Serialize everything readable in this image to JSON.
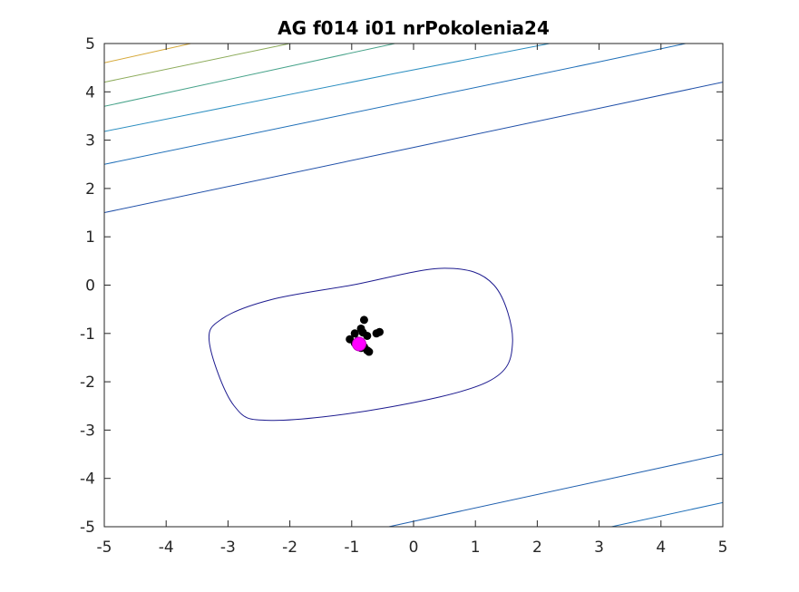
{
  "chart_data": {
    "type": "contour",
    "title": "AG f014 i01 nrPokolenia24",
    "xlabel": "",
    "ylabel": "",
    "xlim": [
      -5,
      5
    ],
    "ylim": [
      -5,
      5
    ],
    "x_ticks": [
      "-5",
      "-4",
      "-3",
      "-2",
      "-1",
      "0",
      "1",
      "2",
      "3",
      "4",
      "5"
    ],
    "y_ticks": [
      "5",
      "4",
      "3",
      "2",
      "1",
      "0",
      "-1",
      "-2",
      "-3",
      "-4",
      "-5"
    ],
    "grid": false,
    "contour_lines": [
      {
        "level_index": 1,
        "color": "#1d1b8f",
        "closed": true,
        "points": [
          [
            -1.0,
            0.0
          ],
          [
            0.5,
            0.35
          ],
          [
            1.3,
            0.0
          ],
          [
            1.6,
            -1.2
          ],
          [
            1.2,
            -2.0
          ],
          [
            -0.5,
            -2.55
          ],
          [
            -2.3,
            -2.8
          ],
          [
            -2.9,
            -2.5
          ],
          [
            -3.3,
            -1.2
          ],
          [
            -3.1,
            -0.7
          ],
          [
            -2.3,
            -0.3
          ],
          [
            -1.0,
            0.0
          ]
        ]
      },
      {
        "level_index": 2,
        "color": "#1f4fa8",
        "closed": false,
        "points": [
          [
            -5.0,
            1.5
          ],
          [
            0.0,
            2.85
          ],
          [
            5.0,
            4.2
          ]
        ]
      },
      {
        "level_index": 3,
        "color": "#1f6fb8",
        "closed": false,
        "points": [
          [
            -5.0,
            2.5
          ],
          [
            3.0,
            4.62
          ],
          [
            4.4,
            5.0
          ]
        ]
      },
      {
        "level_index": 4,
        "color": "#2b8ec0",
        "closed": false,
        "points": [
          [
            -5.0,
            3.18
          ],
          [
            -0.3,
            4.38
          ],
          [
            2.2,
            5.0
          ]
        ]
      },
      {
        "level_index": 5,
        "color": "#47a38a",
        "closed": false,
        "points": [
          [
            -5.0,
            3.7
          ],
          [
            -0.3,
            5.0
          ]
        ]
      },
      {
        "level_index": 6,
        "color": "#8cab5a",
        "closed": false,
        "points": [
          [
            -5.0,
            4.2
          ],
          [
            -2.0,
            5.0
          ]
        ]
      },
      {
        "level_index": 7,
        "color": "#d6a93a",
        "closed": false,
        "points": [
          [
            -5.0,
            4.6
          ],
          [
            -3.6,
            5.0
          ]
        ]
      },
      {
        "level_index": 2,
        "color": "#1f5fae",
        "closed": false,
        "points": [
          [
            -0.4,
            -5.0
          ],
          [
            5.0,
            -3.5
          ]
        ]
      },
      {
        "level_index": 3,
        "color": "#1f6fb8",
        "closed": false,
        "points": [
          [
            3.2,
            -5.0
          ],
          [
            5.0,
            -4.5
          ]
        ]
      }
    ],
    "population": {
      "color": "#000000",
      "points": [
        [
          -0.8,
          -0.72
        ],
        [
          -0.85,
          -0.9
        ],
        [
          -0.82,
          -0.98
        ],
        [
          -0.95,
          -1.0
        ],
        [
          -1.03,
          -1.12
        ],
        [
          -0.55,
          -0.97
        ],
        [
          -0.6,
          -1.0
        ],
        [
          -0.75,
          -1.05
        ],
        [
          -0.9,
          -1.15
        ],
        [
          -0.95,
          -1.2
        ],
        [
          -0.8,
          -1.28
        ],
        [
          -0.75,
          -1.35
        ],
        [
          -0.72,
          -1.38
        ],
        [
          -0.85,
          -1.3
        ]
      ]
    },
    "best": {
      "color": "#ff00ff",
      "point": [
        -0.88,
        -1.22
      ]
    }
  }
}
